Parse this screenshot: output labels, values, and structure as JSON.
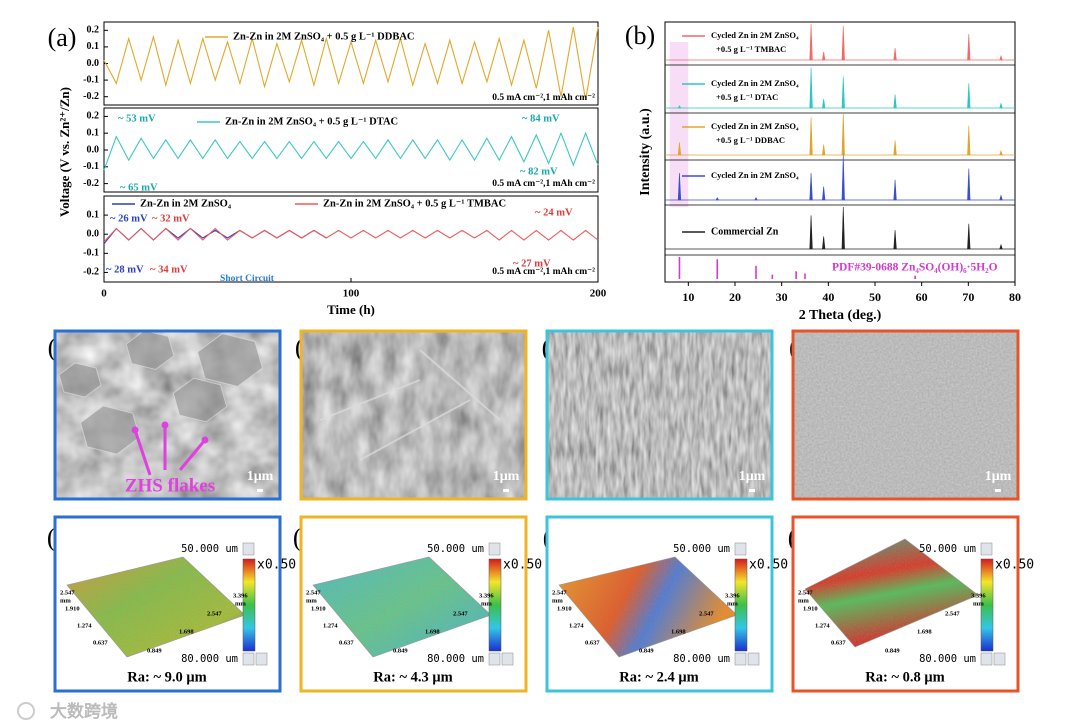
{
  "panel_labels": [
    "(a)",
    "(b)",
    "(c)",
    "(d)",
    "(e)",
    "(f)",
    "(g)",
    "(h)",
    "(i)",
    "(j)"
  ],
  "chart_data": [
    {
      "type": "line",
      "ylabel": "Voltage (V vs. Zn²⁺/Zn)",
      "xlim": [
        0,
        200
      ],
      "ylim": [
        -0.25,
        0.25
      ],
      "yticks": [
        0.2,
        0.1,
        {
          "value": 0,
          "label": "0.0"
        },
        -0.1,
        -0.2
      ],
      "series": [
        {
          "name": "Zn-Zn in 2M ZnSO₄ + 0.5 g L⁻¹ DDBAC",
          "color": "#e3a82b",
          "x": [
            0,
            5,
            10,
            15,
            20,
            25,
            30,
            35,
            40,
            45,
            50,
            55,
            60,
            65,
            70,
            75,
            80,
            85,
            90,
            95,
            100,
            105,
            110,
            115,
            120,
            125,
            130,
            135,
            140,
            145,
            150,
            155,
            160,
            165,
            170,
            175,
            180,
            185,
            190,
            195,
            200
          ],
          "values": [
            0.02,
            -0.12,
            0.15,
            -0.1,
            0.16,
            -0.13,
            0.14,
            -0.12,
            0.15,
            -0.1,
            0.13,
            -0.12,
            0.15,
            -0.14,
            0.12,
            -0.11,
            0.14,
            -0.13,
            0.15,
            -0.12,
            0.13,
            -0.12,
            0.14,
            -0.11,
            0.15,
            -0.13,
            0.12,
            -0.12,
            0.14,
            -0.12,
            0.13,
            -0.11,
            0.15,
            -0.13,
            0.14,
            -0.15,
            0.2,
            -0.2,
            0.22,
            -0.22,
            0.22
          ]
        }
      ],
      "annotations": [
        {
          "text": "0.5 mA cm⁻²,1 mAh cm⁻²",
          "color": "#000"
        }
      ]
    },
    {
      "type": "line",
      "xlim": [
        0,
        200
      ],
      "ylim": [
        -0.25,
        0.25
      ],
      "yticks": [
        0.2,
        0.1,
        {
          "value": 0,
          "label": "0.0"
        },
        -0.1,
        -0.2
      ],
      "series": [
        {
          "name": "Zn-Zn in 2M ZnSO₄ + 0.5 g L⁻¹ DTAC",
          "color": "#3cc8c3",
          "x": [
            0,
            5,
            10,
            15,
            20,
            25,
            30,
            35,
            40,
            45,
            50,
            55,
            60,
            65,
            70,
            75,
            80,
            85,
            90,
            95,
            100,
            105,
            110,
            115,
            120,
            125,
            130,
            135,
            140,
            145,
            150,
            155,
            160,
            165,
            170,
            175,
            180,
            185,
            190,
            195,
            200
          ],
          "values": [
            -0.12,
            0.08,
            -0.06,
            0.07,
            -0.05,
            0.06,
            -0.05,
            0.06,
            -0.05,
            0.06,
            -0.05,
            0.05,
            -0.05,
            0.05,
            -0.05,
            0.05,
            -0.05,
            0.05,
            -0.05,
            0.05,
            -0.05,
            0.05,
            -0.05,
            0.06,
            -0.05,
            0.06,
            -0.05,
            0.06,
            -0.06,
            0.06,
            -0.06,
            0.07,
            -0.06,
            0.08,
            -0.07,
            0.09,
            -0.08,
            0.1,
            -0.09,
            0.1,
            -0.09
          ]
        }
      ],
      "annotations": [
        {
          "text": "~ 53 mV",
          "color": "#1aa8b0"
        },
        {
          "text": "~ 65 mV",
          "color": "#1aa8b0"
        },
        {
          "text": "~ 84 mV",
          "color": "#1aa8b0"
        },
        {
          "text": "~ 82 mV",
          "color": "#1aa8b0"
        },
        {
          "text": "0.5 mA cm⁻²,1 mAh cm⁻²",
          "color": "#000"
        }
      ]
    },
    {
      "type": "line",
      "xlabel": "Time (h)",
      "xlim": [
        0,
        200
      ],
      "xticks": [
        0,
        100,
        200
      ],
      "ylim": [
        -0.25,
        0.2
      ],
      "yticks": [
        0.1,
        {
          "value": 0,
          "label": "0.0"
        },
        -0.1,
        -0.2
      ],
      "series": [
        {
          "name": "Zn-Zn in 2M ZnSO₄",
          "color": "#2b3fc9",
          "x": [
            0,
            5,
            10,
            15,
            20,
            25,
            30,
            35,
            40,
            45,
            50,
            55,
            60,
            65,
            70,
            75,
            80,
            85,
            90
          ],
          "values": [
            -0.05,
            0.03,
            -0.03,
            0.03,
            -0.03,
            0.03,
            -0.02,
            0.03,
            -0.02,
            0.02,
            -0.02,
            0.02,
            -0.02,
            0.02,
            -0.02,
            0.02,
            -0.02,
            0.02,
            -0.02
          ]
        },
        {
          "name": "Zn-Zn in 2M ZnSO₄ + 0.5 g L⁻¹ TMBAC",
          "color": "#ee5a5a",
          "x": [
            0,
            5,
            10,
            15,
            20,
            25,
            30,
            35,
            40,
            45,
            50,
            55,
            60,
            65,
            70,
            75,
            80,
            85,
            90,
            95,
            100,
            105,
            110,
            115,
            120,
            125,
            130,
            135,
            140,
            145,
            150,
            155,
            160,
            165,
            170,
            175,
            180,
            185,
            190,
            195,
            200
          ],
          "values": [
            -0.04,
            0.03,
            -0.03,
            0.03,
            -0.03,
            0.03,
            -0.03,
            0.03,
            -0.03,
            0.03,
            -0.03,
            0.02,
            -0.02,
            0.02,
            -0.02,
            0.02,
            -0.02,
            0.02,
            -0.02,
            0.02,
            -0.02,
            0.02,
            -0.02,
            0.02,
            -0.02,
            0.02,
            -0.02,
            0.02,
            -0.02,
            0.02,
            -0.02,
            0.02,
            -0.03,
            0.02,
            -0.03,
            0.02,
            -0.03,
            0.02,
            -0.03,
            0.02,
            -0.03
          ]
        }
      ],
      "annotations": [
        {
          "text": "~ 26 mV",
          "color": "#2b3fc9"
        },
        {
          "text": "~ 32 mV",
          "color": "#e03a3a"
        },
        {
          "text": "~ 28 mV",
          "color": "#2b3fc9"
        },
        {
          "text": "~ 34 mV",
          "color": "#e03a3a"
        },
        {
          "text": "~ 24 mV",
          "color": "#e03a3a"
        },
        {
          "text": "~ 27 mV",
          "color": "#e03a3a"
        },
        {
          "text": "Short Circuit",
          "color": "#2a7bd4"
        },
        {
          "text": "0.5 mA cm⁻²,1 mAh cm⁻²",
          "color": "#000"
        }
      ]
    },
    {
      "type": "xrd",
      "xlabel": "2 Theta (deg.)",
      "ylabel": "Intensity (a.u.)",
      "xlim": [
        5,
        80
      ],
      "xticks": [
        10,
        20,
        30,
        40,
        50,
        60,
        70,
        80
      ],
      "highlight_range": [
        6,
        10
      ],
      "series": [
        {
          "name": [
            "Cycled Zn in 2M ZnSO₄",
            "+0.5 g L⁻¹ TMBAC"
          ],
          "color": "#f06a6a",
          "x": [
            36.3,
            39.0,
            43.2,
            54.3,
            70.1,
            77.0
          ],
          "values": [
            0.9,
            0.2,
            0.85,
            0.3,
            0.65,
            0.1
          ]
        },
        {
          "name": [
            "Cycled Zn in 2M ZnSO₄",
            "+0.5 g L⁻¹ DTAC"
          ],
          "color": "#2cc7c0",
          "x": [
            8.1,
            36.3,
            39.0,
            43.2,
            54.3,
            70.1,
            77.0
          ],
          "values": [
            0.05,
            0.9,
            0.2,
            0.7,
            0.3,
            0.55,
            0.1
          ]
        },
        {
          "name": [
            "Cycled Zn in 2M ZnSO₄",
            "+0.5 g L⁻¹ DDBAC"
          ],
          "color": "#e0a52a",
          "x": [
            8.1,
            36.3,
            39.0,
            43.2,
            54.3,
            70.1,
            77.0
          ],
          "values": [
            0.3,
            0.9,
            0.25,
            1.0,
            0.35,
            0.7,
            0.1
          ]
        },
        {
          "name": [
            "Cycled Zn in 2M ZnSO₄"
          ],
          "color": "#3a4fcc",
          "x": [
            8.1,
            16.2,
            24.5,
            36.3,
            39.0,
            43.2,
            54.3,
            70.1,
            77.0
          ],
          "values": [
            0.6,
            0.05,
            0.05,
            0.6,
            0.3,
            1.0,
            0.45,
            0.7,
            0.1
          ]
        },
        {
          "name": [
            "Commercial Zn"
          ],
          "color": "#222222",
          "x": [
            36.3,
            39.0,
            43.2,
            54.3,
            70.1,
            77.0
          ],
          "values": [
            0.8,
            0.3,
            1.0,
            0.45,
            0.6,
            0.1
          ]
        },
        {
          "name": [
            "PDF#39-0688 Zn₄SO₄(OH)₆·5H₂O"
          ],
          "color": "#d23ad0",
          "x": [
            8.1,
            16.2,
            24.5,
            28.0,
            33.1,
            35.0,
            58.6
          ],
          "values": [
            1.0,
            0.9,
            0.6,
            0.2,
            0.35,
            0.25,
            0.15
          ]
        }
      ]
    }
  ],
  "frame_colors": [
    "#2a6fd6",
    "#f0b323",
    "#3cc3e0",
    "#e8532a"
  ],
  "sem": {
    "scale": "1μm",
    "annotation": "ZHS flakes"
  },
  "profiles": {
    "scale_top": "50.000 um",
    "scale_bottom": "80.000 um",
    "zoom": "x0.50",
    "y_axis": [
      "2.547",
      "mm",
      "1.910",
      "1.274",
      "0.637"
    ],
    "x_axis": [
      "0.849",
      "1.698",
      "2.547",
      "3.396",
      "mm"
    ],
    "ra": [
      "Ra:  ~ 9.0 μm",
      "Ra:  ~ 4.3 μm",
      "Ra:  ~ 2.4 μm",
      "Ra:  ~ 0.8 μm"
    ]
  },
  "watermark": "大数跨境"
}
